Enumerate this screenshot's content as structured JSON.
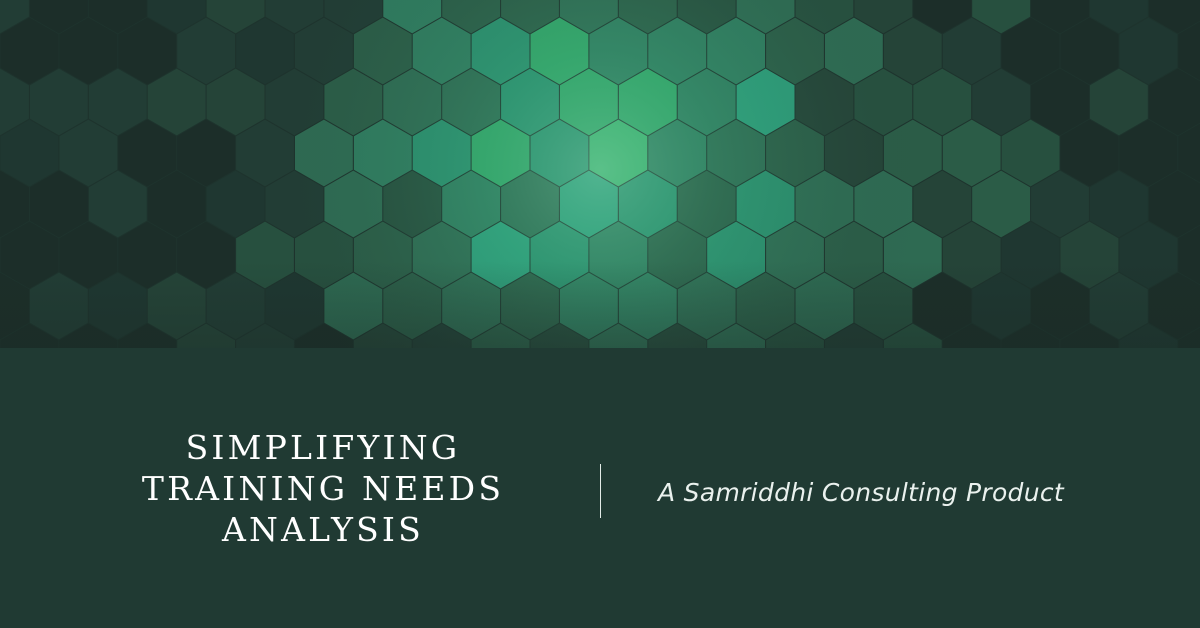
{
  "banner": {
    "pattern_icon": "hexagon-mosaic",
    "colors": [
      "#1c2e29",
      "#1f3731",
      "#223d35",
      "#254438",
      "#27503f",
      "#2b5c47",
      "#2e6a52",
      "#2f7a5e",
      "#2a8c6c",
      "#2c9a78",
      "#31a066",
      "#3aad6c"
    ]
  },
  "title": {
    "lines": [
      "SIMPLIFYING",
      "TRAINING NEEDS",
      "ANALYSIS"
    ]
  },
  "tagline": "A Samriddhi Consulting Product",
  "theme": {
    "background": "#203a33",
    "text": "#ffffff"
  }
}
